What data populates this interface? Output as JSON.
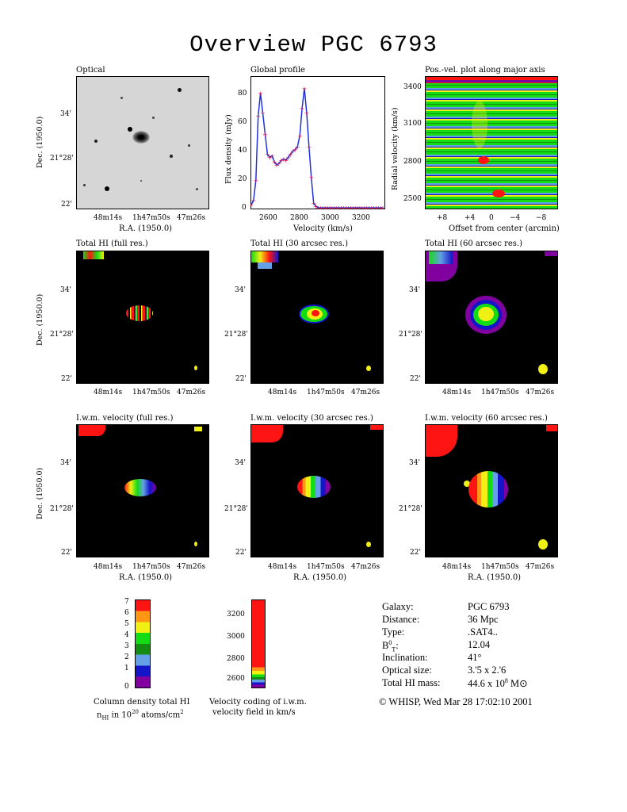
{
  "title": "Overview PGC 6793",
  "panels": {
    "optical": "Optical",
    "global_profile": "Global profile",
    "posvel": "Pos.-vel. plot along major axis",
    "hi_full": "Total HI (full res.)",
    "hi_30": "Total HI (30 arcsec res.)",
    "hi_60": "Total HI (60 arcsec res.)",
    "vel_full": "I.w.m. velocity (full res.)",
    "vel_30": "I.w.m. velocity (30 arcsec res.)",
    "vel_60": "I.w.m. velocity (60 arcsec res.)"
  },
  "axes": {
    "dec_label": "Dec. (1950.0)",
    "ra_label": "R.A. (1950.0)",
    "dec_ticks": [
      "34'",
      "21°28'",
      "22'"
    ],
    "ra_ticks": [
      "48m14s",
      "1h47m50s",
      "47m26s"
    ],
    "flux_label": "Flux density (mJy)",
    "velocity_label": "Velocity (km/s)",
    "radial_label": "Radial velocity (km/s)",
    "offset_label": "Offset from center (arcmin)",
    "flux_ticks": [
      "80",
      "60",
      "40",
      "20",
      "0"
    ],
    "vel_ticks": [
      "2600",
      "2800",
      "3000",
      "3200"
    ],
    "radial_ticks": [
      "3400",
      "3100",
      "2800",
      "2500"
    ],
    "offset_ticks": [
      "+8",
      "+4",
      "0",
      "−4",
      "−8"
    ]
  },
  "colorbars": {
    "density_ticks": [
      "7",
      "6",
      "5",
      "4",
      "3",
      "2",
      "1",
      "0"
    ],
    "density_caption_1": "Column density total HI",
    "density_caption_2": "n",
    "density_caption_2_sub": "HI",
    "density_caption_2_rest": " in 10",
    "density_caption_2_sup": "20",
    "density_caption_2_end": " atoms/cm",
    "density_caption_2_sup2": "2",
    "velocity_ticks": [
      "3200",
      "3000",
      "2800",
      "2600"
    ],
    "velocity_caption_1": "Velocity coding of i.w.m.",
    "velocity_caption_2": "velocity field in km/s",
    "colors": [
      "#8000a0",
      "#1414c8",
      "#64a0e6",
      "#148c14",
      "#14dc14",
      "#f0f014",
      "#ff9614",
      "#ff1414"
    ]
  },
  "info": {
    "galaxy_k": "Galaxy:",
    "galaxy_v": "PGC 6793",
    "distance_k": "Distance:",
    "distance_v": "36 Mpc",
    "type_k": "Type:",
    "type_v": ".SAT4..",
    "bt_k": "B",
    "bt_sup": "0",
    "bt_sub": "T",
    "bt_colon": ":",
    "bt_v": "12.04",
    "incl_k": "Inclination:",
    "incl_v": "41°",
    "optsize_k": "Optical size:",
    "optsize_v": "3.'5 x 2.'6",
    "himass_k": "Total HI mass:",
    "himass_v": "44.6 x 10",
    "himass_sup": "8",
    "himass_unit": " M⊙"
  },
  "footer": "© WHISP, Wed Mar 28 17:02:10 2001",
  "chart_data": {
    "type": "line",
    "title": "Global profile",
    "xlabel": "Velocity (km/s)",
    "ylabel": "Flux density (mJy)",
    "xlim": [
      2475,
      3350
    ],
    "ylim": [
      0,
      85
    ],
    "x": [
      2480,
      2495,
      2510,
      2525,
      2540,
      2555,
      2570,
      2585,
      2600,
      2615,
      2630,
      2645,
      2660,
      2675,
      2690,
      2705,
      2720,
      2735,
      2750,
      2765,
      2780,
      2795,
      2810,
      2825,
      2840,
      2855,
      2870,
      2885,
      2900,
      2915,
      2930,
      2945,
      2960,
      2975,
      2990,
      3005,
      3020,
      3035,
      3050,
      3065,
      3080,
      3095,
      3110,
      3125,
      3140,
      3155,
      3170,
      3185,
      3200,
      3215,
      3230,
      3245,
      3260,
      3275,
      3290,
      3305,
      3320,
      3335
    ],
    "series": [
      {
        "values": [
          2,
          5,
          18,
          60,
          75,
          62,
          48,
          35,
          33,
          34,
          30,
          28,
          29,
          31,
          32,
          31,
          33,
          35,
          37,
          38,
          40,
          47,
          65,
          78,
          62,
          40,
          20,
          3,
          1,
          0,
          0,
          0,
          0,
          0,
          0,
          0,
          0,
          0,
          0,
          0,
          0,
          0,
          0,
          0,
          0,
          0,
          0,
          0,
          0,
          0,
          0,
          0,
          0,
          0,
          0,
          0,
          0,
          0
        ]
      }
    ]
  }
}
